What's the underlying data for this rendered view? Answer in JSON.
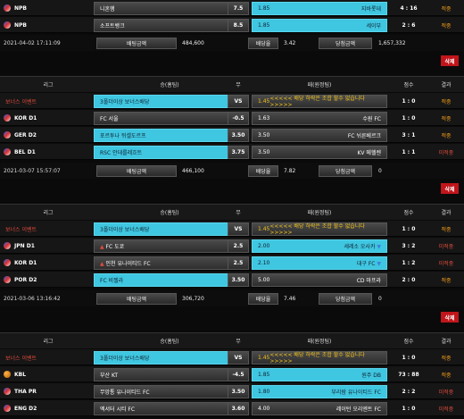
{
  "headers": {
    "league": "리그",
    "home": "승(홈팀)",
    "draw": "무",
    "away": "패(원정팀)",
    "score": "점수",
    "result": "결과"
  },
  "summary_labels": {
    "bet_amount": "배팅금액",
    "bet_odds": "배당율",
    "win_amount": "당첨금액"
  },
  "delete_label": "삭제",
  "top_rows": [
    {
      "league": "NPB",
      "home": "니혼햄",
      "home_odds": "1.85",
      "home_sel": false,
      "draw": "7.5",
      "away_odds": "1.85",
      "away": "지바롯데",
      "away_sel": true,
      "score": "4 : 16",
      "result": "적중"
    },
    {
      "league": "NPB",
      "home": "소프트뱅크",
      "home_odds": "1.85",
      "home_sel": false,
      "draw": "8.5",
      "away_odds": "1.85",
      "away": "세이부",
      "away_sel": true,
      "score": "2 : 6",
      "result": "적중"
    }
  ],
  "top_summary": {
    "time": "2021-04-02 17:11:09",
    "bet_amount": "484,600",
    "bet_odds": "3.42",
    "win_amount": "1,657,332"
  },
  "slips": [
    {
      "rows": [
        {
          "league": "보너스 이벤트",
          "bonus": true,
          "home": "3폴더이상 보너스배당",
          "home_odds": "1.03",
          "home_sel": true,
          "draw": "VS",
          "away_odds": "1.45",
          "away": "<<<<< 배당 하락은 조합 할수 없습니다 >>>>>",
          "score": "1 : 0",
          "result": "적중"
        },
        {
          "league": "KOR D1",
          "home": "FC 서울",
          "home_odds": "2.08",
          "draw": "-0.5",
          "away_odds": "1.63",
          "away": "수원 FC",
          "score": "1 : 0",
          "result": "적중"
        },
        {
          "league": "GER D2",
          "home": "포르투나 뒤셀도르프",
          "home_odds": "1.91",
          "home_sel": true,
          "draw": "3.50",
          "away_odds": "3.50",
          "away": "FC 뉘른베르크",
          "score": "3 : 1",
          "result": "적중"
        },
        {
          "league": "BEL D1",
          "home": "RSC 안데를레흐트",
          "home_odds": "1.91",
          "home_sel": true,
          "draw": "3.75",
          "away_odds": "3.50",
          "away": "KV 메헬렌",
          "score": "1 : 1",
          "result": "미적중"
        }
      ],
      "summary": {
        "time": "2021-03-07 15:57:07",
        "bet_amount": "466,100",
        "bet_odds": "7.82",
        "win_amount": "0"
      }
    },
    {
      "rows": [
        {
          "league": "보너스 이벤트",
          "bonus": true,
          "home": "3폴더이상 보너스배당",
          "home_odds": "1.03",
          "home_sel": true,
          "draw": "VS",
          "away_odds": "1.45",
          "away": "<<<<< 배당 하락은 조합 할수 없습니다 >>>>>",
          "score": "1 : 0",
          "result": "적중"
        },
        {
          "league": "JPN D1",
          "home": "FC 도쿄",
          "home_odds": "1.70",
          "home_arrow": "up",
          "draw": "2.5",
          "away_odds": "2.00",
          "away": "세레소 오사카",
          "away_arrow": "down",
          "away_sel": true,
          "score": "3 : 2",
          "result": "미적중"
        },
        {
          "league": "KOR D1",
          "home": "인천 유나이티드 FC",
          "home_odds": "1.68",
          "home_arrow": "up",
          "draw": "2.5",
          "away_odds": "2.10",
          "away": "대구 FC",
          "away_arrow": "down",
          "away_sel": true,
          "score": "1 : 2",
          "result": "미적중"
        },
        {
          "league": "POR D2",
          "home": "FC 비젤라",
          "home_odds": "1.73",
          "home_sel": true,
          "draw": "3.50",
          "away_odds": "5.00",
          "away": "CD 마프라",
          "score": "2 : 0",
          "result": "적중"
        }
      ],
      "summary": {
        "time": "2021-03-06 13:16:42",
        "bet_amount": "306,720",
        "bet_odds": "7.46",
        "win_amount": "0"
      }
    },
    {
      "rows": [
        {
          "league": "보너스 이벤트",
          "bonus": true,
          "home": "3폴더이상 보너스배당",
          "home_odds": "1.03",
          "home_sel": true,
          "draw": "VS",
          "away_odds": "1.45",
          "away": "<<<<< 배당 하락은 조합 할수 없습니다 >>>>>",
          "score": "1 : 0",
          "result": "적중"
        },
        {
          "league": "KBL",
          "ball": true,
          "home": "부산 KT",
          "home_odds": "1.85",
          "draw": "-4.5",
          "away_odds": "1.85",
          "away": "원주 DB",
          "away_sel": true,
          "score": "73 : 88",
          "result": "적중"
        },
        {
          "league": "THA PR",
          "home": "무앙통 유나이티드 FC",
          "home_odds": "3.00",
          "draw": "3.50",
          "away_odds": "1.80",
          "away": "부리람 유나이티드 FC",
          "away_sel": true,
          "score": "2 : 2",
          "result": "미적중"
        },
        {
          "league": "ENG D2",
          "home": "엑서터 시티 FC",
          "home_odds": "1.91",
          "draw": "3.60",
          "away_odds": "4.00",
          "away": "레이턴 오리엔트 FC",
          "score": "1 : 0",
          "result": "미적중"
        }
      ],
      "summary": null
    }
  ]
}
